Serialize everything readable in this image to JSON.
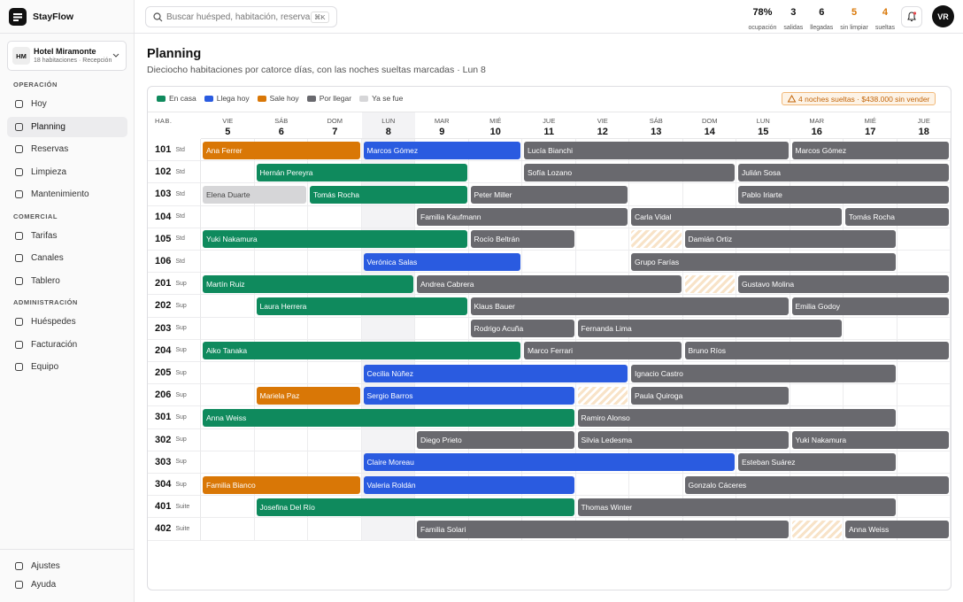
{
  "brand": "StayFlow",
  "hotel": {
    "initials": "HM",
    "name": "Hotel Miramonte",
    "subtitle": "18 habitaciones · Recepción"
  },
  "nav": [
    {
      "section": "OPERACIÓN",
      "items": [
        "Hoy",
        "Planning",
        "Reservas",
        "Limpieza",
        "Mantenimiento"
      ]
    },
    {
      "section": "COMERCIAL",
      "items": [
        "Tarifas",
        "Canales",
        "Tablero"
      ]
    },
    {
      "section": "ADMINISTRACIÓN",
      "items": [
        "Huéspedes",
        "Facturación",
        "Equipo"
      ]
    }
  ],
  "nav_active": [
    0,
    1
  ],
  "footer_nav": [
    "Ajustes",
    "Ayuda"
  ],
  "search": {
    "placeholder": "Buscar huésped, habitación, reserva",
    "shortcut": "⌘K"
  },
  "stats": [
    {
      "value": "78%",
      "label": "ocupación",
      "warn": false
    },
    {
      "value": "3",
      "label": "salidas",
      "warn": false
    },
    {
      "value": "6",
      "label": "llegadas",
      "warn": false
    },
    {
      "value": "5",
      "label": "sin limpiar",
      "warn": true
    },
    {
      "value": "4",
      "label": "sueltas",
      "warn": true
    }
  ],
  "user_initials": "VR",
  "page": {
    "title": "Planning",
    "subtitle": "Dieciocho habitaciones por catorce días, con las noches sueltas marcadas · Lun 8"
  },
  "legend": [
    {
      "name": "En casa",
      "color": "#0f8a5d"
    },
    {
      "name": "Llega hoy",
      "color": "#2a5be0"
    },
    {
      "name": "Sale hoy",
      "color": "#d97706"
    },
    {
      "name": "Por llegar",
      "color": "#69696e"
    },
    {
      "name": "Ya se fue",
      "color": "#d6d6d8"
    }
  ],
  "alert": "4 noches sueltas · $438.000 sin vender",
  "room_header": "HAB.",
  "days": [
    {
      "dow": "VIE",
      "day": 5
    },
    {
      "dow": "SÁB",
      "day": 6
    },
    {
      "dow": "DOM",
      "day": 7
    },
    {
      "dow": "LUN",
      "day": 8
    },
    {
      "dow": "MAR",
      "day": 9
    },
    {
      "dow": "MIÉ",
      "day": 10
    },
    {
      "dow": "JUE",
      "day": 11
    },
    {
      "dow": "VIE",
      "day": 12
    },
    {
      "dow": "SÁB",
      "day": 13
    },
    {
      "dow": "DOM",
      "day": 14
    },
    {
      "dow": "LUN",
      "day": 15
    },
    {
      "dow": "MAR",
      "day": 16
    },
    {
      "dow": "MIÉ",
      "day": 17
    },
    {
      "dow": "JUE",
      "day": 18
    }
  ],
  "today": 3,
  "rooms": [
    {
      "number": "101",
      "type": "Std",
      "loose": [],
      "bookings": [
        {
          "guest": "Ana Ferrer",
          "start": 0,
          "nights": 3,
          "status": 2
        },
        {
          "guest": "Marcos Gómez",
          "start": 3,
          "nights": 3,
          "status": 1
        },
        {
          "guest": "Lucía Bianchi",
          "start": 6,
          "nights": 5,
          "status": 3
        },
        {
          "guest": "Marcos Gómez",
          "start": 11,
          "nights": 3,
          "status": 3
        }
      ]
    },
    {
      "number": "102",
      "type": "Std",
      "loose": [],
      "bookings": [
        {
          "guest": "Hernán Pereyra",
          "start": 1,
          "nights": 4,
          "status": 0
        },
        {
          "guest": "Sofía Lozano",
          "start": 6,
          "nights": 4,
          "status": 3
        },
        {
          "guest": "Julián Sosa",
          "start": 10,
          "nights": 4,
          "status": 3
        }
      ]
    },
    {
      "number": "103",
      "type": "Std",
      "loose": [],
      "bookings": [
        {
          "guest": "Elena Duarte",
          "start": 0,
          "nights": 2,
          "status": 4
        },
        {
          "guest": "Tomás Rocha",
          "start": 2,
          "nights": 3,
          "status": 0
        },
        {
          "guest": "Peter Miller",
          "start": 5,
          "nights": 3,
          "status": 3
        },
        {
          "guest": "Pablo Iriarte",
          "start": 10,
          "nights": 4,
          "status": 3
        }
      ]
    },
    {
      "number": "104",
      "type": "Std",
      "loose": [],
      "bookings": [
        {
          "guest": "Familia Kaufmann",
          "start": 4,
          "nights": 4,
          "status": 3
        },
        {
          "guest": "Carla Vidal",
          "start": 8,
          "nights": 4,
          "status": 3
        },
        {
          "guest": "Tomás Rocha",
          "start": 12,
          "nights": 2,
          "status": 3
        }
      ]
    },
    {
      "number": "105",
      "type": "Std",
      "loose": [
        8
      ],
      "bookings": [
        {
          "guest": "Yuki Nakamura",
          "start": 0,
          "nights": 5,
          "status": 0
        },
        {
          "guest": "Rocío Beltrán",
          "start": 5,
          "nights": 2,
          "status": 3
        },
        {
          "guest": "Damián Ortiz",
          "start": 9,
          "nights": 4,
          "status": 3
        }
      ]
    },
    {
      "number": "106",
      "type": "Std",
      "loose": [],
      "bookings": [
        {
          "guest": "Verónica Salas",
          "start": 3,
          "nights": 3,
          "status": 1
        },
        {
          "guest": "Grupo Farías",
          "start": 8,
          "nights": 5,
          "status": 3
        }
      ]
    },
    {
      "number": "201",
      "type": "Sup",
      "loose": [
        9
      ],
      "bookings": [
        {
          "guest": "Martín Ruiz",
          "start": 0,
          "nights": 4,
          "status": 0
        },
        {
          "guest": "Andrea Cabrera",
          "start": 4,
          "nights": 5,
          "status": 3
        },
        {
          "guest": "Gustavo Molina",
          "start": 10,
          "nights": 4,
          "status": 3
        }
      ]
    },
    {
      "number": "202",
      "type": "Sup",
      "loose": [],
      "bookings": [
        {
          "guest": "Laura Herrera",
          "start": 1,
          "nights": 4,
          "status": 0
        },
        {
          "guest": "Klaus Bauer",
          "start": 5,
          "nights": 6,
          "status": 3
        },
        {
          "guest": "Emilia Godoy",
          "start": 11,
          "nights": 3,
          "status": 3
        }
      ]
    },
    {
      "number": "203",
      "type": "Sup",
      "loose": [],
      "bookings": [
        {
          "guest": "Rodrigo Acuña",
          "start": 5,
          "nights": 2,
          "status": 3
        },
        {
          "guest": "Fernanda Lima",
          "start": 7,
          "nights": 5,
          "status": 3
        }
      ]
    },
    {
      "number": "204",
      "type": "Sup",
      "loose": [],
      "bookings": [
        {
          "guest": "Aiko Tanaka",
          "start": 0,
          "nights": 6,
          "status": 0
        },
        {
          "guest": "Marco Ferrari",
          "start": 6,
          "nights": 3,
          "status": 3
        },
        {
          "guest": "Bruno Ríos",
          "start": 9,
          "nights": 5,
          "status": 3
        }
      ]
    },
    {
      "number": "205",
      "type": "Sup",
      "loose": [],
      "bookings": [
        {
          "guest": "Cecilia Núñez",
          "start": 3,
          "nights": 5,
          "status": 1
        },
        {
          "guest": "Ignacio Castro",
          "start": 8,
          "nights": 5,
          "status": 3
        }
      ]
    },
    {
      "number": "206",
      "type": "Sup",
      "loose": [
        7
      ],
      "bookings": [
        {
          "guest": "Mariela Paz",
          "start": 1,
          "nights": 2,
          "status": 2
        },
        {
          "guest": "Sergio Barros",
          "start": 3,
          "nights": 4,
          "status": 1
        },
        {
          "guest": "Paula Quiroga",
          "start": 8,
          "nights": 3,
          "status": 3
        }
      ]
    },
    {
      "number": "301",
      "type": "Sup",
      "loose": [],
      "bookings": [
        {
          "guest": "Anna Weiss",
          "start": 0,
          "nights": 7,
          "status": 0
        },
        {
          "guest": "Ramiro Alonso",
          "start": 7,
          "nights": 6,
          "status": 3
        }
      ]
    },
    {
      "number": "302",
      "type": "Sup",
      "loose": [],
      "bookings": [
        {
          "guest": "Diego Prieto",
          "start": 4,
          "nights": 3,
          "status": 3
        },
        {
          "guest": "Silvia Ledesma",
          "start": 7,
          "nights": 4,
          "status": 3
        },
        {
          "guest": "Yuki Nakamura",
          "start": 11,
          "nights": 3,
          "status": 3
        }
      ]
    },
    {
      "number": "303",
      "type": "Sup",
      "loose": [],
      "bookings": [
        {
          "guest": "Claire Moreau",
          "start": 3,
          "nights": 7,
          "status": 1
        },
        {
          "guest": "Esteban Suárez",
          "start": 10,
          "nights": 3,
          "status": 3
        }
      ]
    },
    {
      "number": "304",
      "type": "Sup",
      "loose": [],
      "bookings": [
        {
          "guest": "Familia Bianco",
          "start": 0,
          "nights": 3,
          "status": 2
        },
        {
          "guest": "Valeria Roldán",
          "start": 3,
          "nights": 4,
          "status": 1
        },
        {
          "guest": "Gonzalo Cáceres",
          "start": 9,
          "nights": 5,
          "status": 3
        }
      ]
    },
    {
      "number": "401",
      "type": "Suite",
      "loose": [],
      "bookings": [
        {
          "guest": "Josefina Del Río",
          "start": 1,
          "nights": 6,
          "status": 0
        },
        {
          "guest": "Thomas Winter",
          "start": 7,
          "nights": 6,
          "status": 3
        }
      ]
    },
    {
      "number": "402",
      "type": "Suite",
      "loose": [
        11
      ],
      "bookings": [
        {
          "guest": "Familia Solari",
          "start": 4,
          "nights": 7,
          "status": 3
        },
        {
          "guest": "Anna Weiss",
          "start": 12,
          "nights": 2,
          "status": 3
        }
      ]
    }
  ]
}
